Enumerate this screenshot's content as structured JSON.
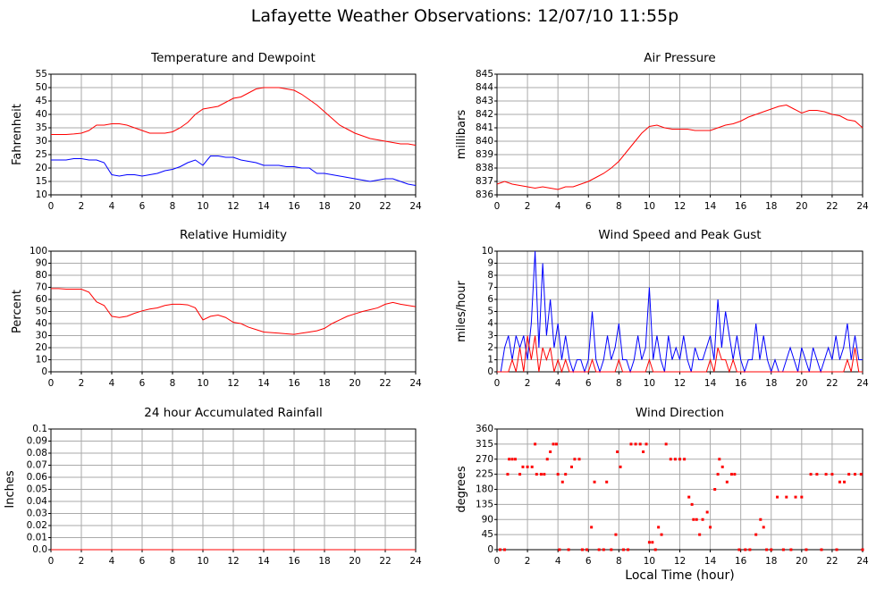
{
  "title": "Lafayette Weather Observations: 12/07/10 11:55p",
  "chart_data": [
    {
      "type": "line",
      "title": "Temperature and Dewpoint",
      "ylabel": "Fahrenheit",
      "xlim": [
        0,
        24
      ],
      "xticks": [
        0,
        2,
        4,
        6,
        8,
        10,
        12,
        14,
        16,
        18,
        20,
        22,
        24
      ],
      "ylim": [
        10,
        55
      ],
      "yticks": [
        10,
        15,
        20,
        25,
        30,
        35,
        40,
        45,
        50,
        55
      ],
      "grid": true,
      "x": [
        0,
        0.5,
        1,
        1.5,
        2,
        2.5,
        3,
        3.5,
        4,
        4.5,
        5,
        5.5,
        6,
        6.5,
        7,
        7.5,
        8,
        8.5,
        9,
        9.5,
        10,
        10.5,
        11,
        11.5,
        12,
        12.5,
        13,
        13.5,
        14,
        14.5,
        15,
        15.5,
        16,
        16.5,
        17,
        17.5,
        18,
        18.5,
        19,
        19.5,
        20,
        20.5,
        21,
        21.5,
        22,
        22.5,
        23,
        23.5,
        24
      ],
      "series": [
        {
          "color": "#ff0000",
          "values": [
            32.5,
            32.5,
            32.5,
            32.7,
            33,
            34,
            36,
            36,
            36.5,
            36.5,
            36,
            35,
            34,
            33,
            33,
            33,
            33.5,
            35,
            37,
            40,
            42,
            42.5,
            43,
            44.5,
            46,
            46.5,
            48,
            49.5,
            50,
            50,
            50,
            49.5,
            49,
            47.5,
            45.5,
            43.5,
            41,
            38.5,
            36,
            34.5,
            33,
            32,
            31,
            30.5,
            30,
            29.5,
            29,
            29,
            28.5
          ]
        },
        {
          "color": "#0000ff",
          "values": [
            23,
            23,
            23,
            23.5,
            23.5,
            23,
            23,
            22,
            17.5,
            17,
            17.5,
            17.5,
            17,
            17.5,
            18,
            19,
            19.5,
            20.5,
            22,
            23,
            21,
            24.5,
            24.5,
            24,
            24,
            23,
            22.5,
            22,
            21,
            21,
            21,
            20.5,
            20.5,
            20,
            20,
            18,
            18,
            17.5,
            17,
            16.5,
            16,
            15.5,
            15,
            15.5,
            16,
            16,
            15,
            14,
            13.5
          ]
        }
      ]
    },
    {
      "type": "line",
      "title": "Air Pressure",
      "ylabel": "millibars",
      "xlim": [
        0,
        24
      ],
      "xticks": [
        0,
        2,
        4,
        6,
        8,
        10,
        12,
        14,
        16,
        18,
        20,
        22,
        24
      ],
      "ylim": [
        836,
        845
      ],
      "yticks": [
        836,
        837,
        838,
        839,
        840,
        841,
        842,
        843,
        844,
        845
      ],
      "grid": true,
      "x": [
        0,
        0.5,
        1,
        1.5,
        2,
        2.5,
        3,
        3.5,
        4,
        4.5,
        5,
        5.5,
        6,
        6.5,
        7,
        7.5,
        8,
        8.5,
        9,
        9.5,
        10,
        10.5,
        11,
        11.5,
        12,
        12.5,
        13,
        13.5,
        14,
        14.5,
        15,
        15.5,
        16,
        16.5,
        17,
        17.5,
        18,
        18.5,
        19,
        19.5,
        20,
        20.5,
        21,
        21.5,
        22,
        22.5,
        23,
        23.5,
        24
      ],
      "series": [
        {
          "color": "#ff0000",
          "values": [
            836.8,
            837,
            836.8,
            836.7,
            836.6,
            836.5,
            836.6,
            836.5,
            836.4,
            836.6,
            836.6,
            836.8,
            837,
            837.3,
            837.6,
            838,
            838.5,
            839.2,
            839.9,
            840.6,
            841.1,
            841.2,
            841,
            840.9,
            840.9,
            840.9,
            840.8,
            840.8,
            840.8,
            841,
            841.2,
            841.3,
            841.5,
            841.8,
            842,
            842.2,
            842.4,
            842.6,
            842.7,
            842.4,
            842.1,
            842.3,
            842.3,
            842.2,
            842,
            841.9,
            841.6,
            841.5,
            841
          ]
        }
      ]
    },
    {
      "type": "line",
      "title": "Relative Humidity",
      "ylabel": "Percent",
      "xlim": [
        0,
        24
      ],
      "xticks": [
        0,
        2,
        4,
        6,
        8,
        10,
        12,
        14,
        16,
        18,
        20,
        22,
        24
      ],
      "ylim": [
        0,
        100
      ],
      "yticks": [
        0,
        10,
        20,
        30,
        40,
        50,
        60,
        70,
        80,
        90,
        100
      ],
      "grid": true,
      "x": [
        0,
        0.5,
        1,
        1.5,
        2,
        2.5,
        3,
        3.5,
        4,
        4.5,
        5,
        5.5,
        6,
        6.5,
        7,
        7.5,
        8,
        8.5,
        9,
        9.5,
        10,
        10.5,
        11,
        11.5,
        12,
        12.5,
        13,
        13.5,
        14,
        14.5,
        15,
        15.5,
        16,
        16.5,
        17,
        17.5,
        18,
        18.5,
        19,
        19.5,
        20,
        20.5,
        21,
        21.5,
        22,
        22.5,
        23,
        23.5,
        24
      ],
      "series": [
        {
          "color": "#ff0000",
          "values": [
            69,
            69,
            68.5,
            68.5,
            68.5,
            66,
            58,
            55,
            46,
            45,
            46,
            48.5,
            50.5,
            52,
            53,
            55,
            56,
            56,
            55.5,
            53,
            43,
            46,
            47,
            45,
            41,
            40,
            37,
            35,
            33,
            32.5,
            32,
            31.5,
            31,
            32,
            33,
            34,
            36,
            40,
            43,
            46,
            48,
            50,
            51.5,
            53,
            56,
            57.5,
            56,
            55,
            54
          ]
        }
      ]
    },
    {
      "type": "line",
      "title": "Wind Speed and Peak Gust",
      "ylabel": "miles/hour",
      "xlim": [
        0,
        24
      ],
      "xticks": [
        0,
        2,
        4,
        6,
        8,
        10,
        12,
        14,
        16,
        18,
        20,
        22,
        24
      ],
      "ylim": [
        0,
        10
      ],
      "yticks": [
        0,
        1,
        2,
        3,
        4,
        5,
        6,
        7,
        8,
        9,
        10
      ],
      "grid": true,
      "x": [
        0,
        0.25,
        0.5,
        0.75,
        1,
        1.25,
        1.5,
        1.75,
        2,
        2.25,
        2.5,
        2.75,
        3,
        3.25,
        3.5,
        3.75,
        4,
        4.25,
        4.5,
        4.75,
        5,
        5.25,
        5.5,
        5.75,
        6,
        6.25,
        6.5,
        6.75,
        7,
        7.25,
        7.5,
        7.75,
        8,
        8.25,
        8.5,
        8.75,
        9,
        9.25,
        9.5,
        9.75,
        10,
        10.25,
        10.5,
        10.75,
        11,
        11.25,
        11.5,
        11.75,
        12,
        12.25,
        12.5,
        12.75,
        13,
        13.25,
        13.5,
        13.75,
        14,
        14.25,
        14.5,
        14.75,
        15,
        15.25,
        15.5,
        15.75,
        16,
        16.25,
        16.5,
        16.75,
        17,
        17.25,
        17.5,
        17.75,
        18,
        18.25,
        18.5,
        18.75,
        19,
        19.25,
        19.5,
        19.75,
        20,
        20.25,
        20.5,
        20.75,
        21,
        21.25,
        21.5,
        21.75,
        22,
        22.25,
        22.5,
        22.75,
        23,
        23.25,
        23.5,
        23.75,
        24
      ],
      "series": [
        {
          "color": "#0000ff",
          "values": [
            0,
            0,
            2,
            3,
            1,
            3,
            2,
            3,
            1,
            4,
            10,
            2,
            9,
            3,
            6,
            2,
            4,
            1,
            3,
            1,
            0,
            1,
            1,
            0,
            1,
            5,
            1,
            0,
            1,
            3,
            1,
            2,
            4,
            1,
            1,
            0,
            1,
            3,
            1,
            2,
            7,
            1,
            3,
            1,
            0,
            3,
            1,
            2,
            1,
            3,
            1,
            0,
            2,
            1,
            1,
            2,
            3,
            1,
            6,
            2,
            5,
            3,
            1,
            3,
            1,
            0,
            1,
            1,
            4,
            1,
            3,
            1,
            0,
            1,
            0,
            0,
            1,
            2,
            1,
            0,
            2,
            1,
            0,
            2,
            1,
            0,
            1,
            2,
            1,
            3,
            1,
            2,
            4,
            1,
            3,
            1,
            1
          ]
        },
        {
          "color": "#ff0000",
          "values": [
            0,
            0,
            0,
            0,
            1,
            0,
            2,
            0,
            3,
            1,
            3,
            0,
            2,
            1,
            2,
            0,
            1,
            0,
            1,
            0,
            0,
            0,
            0,
            0,
            0,
            1,
            0,
            0,
            0,
            0,
            0,
            0,
            1,
            0,
            0,
            0,
            0,
            0,
            0,
            0,
            1,
            0,
            0,
            0,
            0,
            0,
            0,
            0,
            0,
            0,
            0,
            0,
            0,
            0,
            0,
            0,
            1,
            0,
            2,
            1,
            1,
            0,
            1,
            0,
            0,
            0,
            0,
            0,
            0,
            0,
            0,
            0,
            0,
            0,
            0,
            0,
            0,
            0,
            0,
            0,
            0,
            0,
            0,
            0,
            0,
            0,
            0,
            0,
            0,
            0,
            0,
            0,
            1,
            0,
            2,
            0,
            0
          ]
        }
      ]
    },
    {
      "type": "line",
      "title": "24 hour Accumulated Rainfall",
      "ylabel": "Inches",
      "xlim": [
        0,
        24
      ],
      "xticks": [
        0,
        2,
        4,
        6,
        8,
        10,
        12,
        14,
        16,
        18,
        20,
        22,
        24
      ],
      "ylim": [
        0,
        0.1
      ],
      "yticks": [
        {
          "value": 0,
          "label": "0.0"
        },
        0.01,
        0.02,
        0.03,
        0.04,
        0.05,
        0.06,
        0.07,
        0.08,
        0.09,
        0.1
      ],
      "grid": true,
      "x": [
        0,
        24
      ],
      "series": [
        {
          "color": "#ff0000",
          "values": [
            0,
            0
          ]
        }
      ]
    },
    {
      "type": "scatter",
      "title": "Wind Direction",
      "ylabel": "degrees",
      "xlabel": "Local Time (hour)",
      "xlim": [
        0,
        24
      ],
      "xticks": [
        0,
        2,
        4,
        6,
        8,
        10,
        12,
        14,
        16,
        18,
        20,
        22,
        24
      ],
      "ylim": [
        0,
        360
      ],
      "yticks": [
        0,
        45,
        90,
        135,
        180,
        225,
        270,
        315,
        360
      ],
      "grid": true,
      "x": [
        0.2,
        0.5,
        0.7,
        0.8,
        1,
        1.2,
        1.5,
        1.7,
        2,
        2.3,
        2.5,
        2.6,
        2.9,
        3.1,
        3.3,
        3.5,
        3.7,
        3.9,
        4,
        4.1,
        4.3,
        4.5,
        4.7,
        4.9,
        5.1,
        5.4,
        5.6,
        5.9,
        6.2,
        6.4,
        6.7,
        7,
        7.2,
        7.5,
        7.8,
        7.9,
        8.1,
        8.3,
        8.6,
        8.8,
        9.1,
        9.4,
        9.6,
        9.8,
        10,
        10.2,
        10.4,
        10.6,
        10.8,
        11.1,
        11.4,
        11.7,
        12,
        12.3,
        12.6,
        12.8,
        12.9,
        13.1,
        13.3,
        13.5,
        13.8,
        14,
        14.3,
        14.5,
        14.6,
        14.8,
        15.1,
        15.4,
        15.6,
        15.9,
        16.3,
        16.6,
        17,
        17.3,
        17.5,
        17.7,
        18,
        18.4,
        18.8,
        19,
        19.3,
        19.6,
        20,
        20.3,
        20.6,
        21,
        21.3,
        21.6,
        22,
        22.3,
        22.5,
        22.8,
        23.1,
        23.5,
        23.9,
        24
      ],
      "series": [
        {
          "color": "#ff0000",
          "values": [
            0,
            0,
            225,
            270,
            270,
            270,
            225,
            247,
            247,
            247,
            315,
            225,
            225,
            225,
            270,
            292,
            315,
            315,
            225,
            0,
            202,
            225,
            0,
            247,
            270,
            270,
            0,
            0,
            67,
            202,
            0,
            0,
            202,
            0,
            45,
            292,
            247,
            0,
            0,
            315,
            315,
            315,
            292,
            315,
            22,
            22,
            0,
            67,
            45,
            315,
            270,
            270,
            270,
            270,
            157,
            135,
            90,
            90,
            45,
            90,
            112,
            67,
            180,
            225,
            270,
            247,
            202,
            225,
            225,
            0,
            0,
            0,
            45,
            90,
            67,
            0,
            0,
            157,
            0,
            157,
            0,
            157,
            157,
            0,
            225,
            225,
            0,
            225,
            225,
            0,
            202,
            202,
            225,
            225,
            225,
            0
          ]
        }
      ]
    }
  ]
}
